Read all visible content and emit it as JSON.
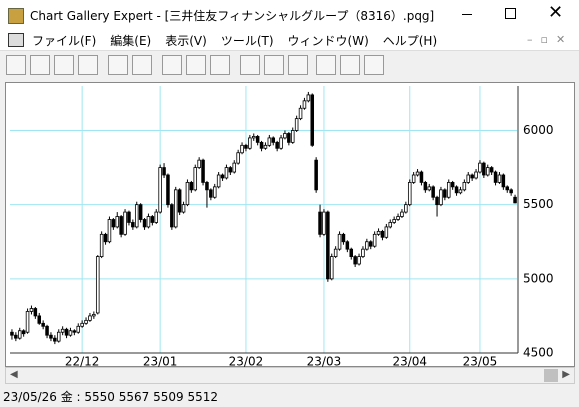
{
  "window": {
    "title": "Chart Gallery Expert - [三井住友フィナンシャルグループ（8316）.pqg]"
  },
  "menu": [
    "ファイル(F)",
    "編集(E)",
    "表示(V)",
    "ツール(T)",
    "ウィンドウ(W)",
    "ヘルプ(H)"
  ],
  "status_bar": {
    "text": "23/05/26 金 : 5550 5567 5509 5512"
  },
  "chart_data": {
    "type": "candlestick",
    "up_color": "#ffffff",
    "down_color": "#000000",
    "grid_color": "#9fe6f2",
    "xlim": [
      -0.5,
      129.5
    ],
    "xticks": [
      {
        "value": 18,
        "label": "22/12"
      },
      {
        "value": 38,
        "label": "23/01"
      },
      {
        "value": 60,
        "label": "23/02"
      },
      {
        "value": 80,
        "label": "23/03"
      },
      {
        "value": 102,
        "label": "23/04"
      },
      {
        "value": 120,
        "label": "23/05"
      }
    ],
    "ylim": [
      4500,
      6300
    ],
    "yticks": [
      4500,
      5000,
      5500,
      6000
    ],
    "grid": true,
    "ohlc": [
      [
        4640,
        4660,
        4590,
        4620
      ],
      [
        4620,
        4640,
        4580,
        4600
      ],
      [
        4600,
        4670,
        4590,
        4650
      ],
      [
        4650,
        4660,
        4610,
        4630
      ],
      [
        4640,
        4800,
        4630,
        4780
      ],
      [
        4780,
        4820,
        4760,
        4800
      ],
      [
        4800,
        4810,
        4730,
        4750
      ],
      [
        4750,
        4770,
        4690,
        4700
      ],
      [
        4700,
        4720,
        4660,
        4680
      ],
      [
        4680,
        4690,
        4600,
        4620
      ],
      [
        4620,
        4640,
        4580,
        4600
      ],
      [
        4600,
        4620,
        4560,
        4580
      ],
      [
        4580,
        4660,
        4570,
        4640
      ],
      [
        4640,
        4680,
        4620,
        4660
      ],
      [
        4660,
        4670,
        4600,
        4620
      ],
      [
        4620,
        4670,
        4610,
        4650
      ],
      [
        4650,
        4660,
        4620,
        4640
      ],
      [
        4640,
        4700,
        4630,
        4680
      ],
      [
        4680,
        4720,
        4670,
        4700
      ],
      [
        4700,
        4740,
        4690,
        4720
      ],
      [
        4720,
        4770,
        4710,
        4750
      ],
      [
        4750,
        4780,
        4730,
        4760
      ],
      [
        4770,
        5160,
        4760,
        5150
      ],
      [
        5150,
        5320,
        5140,
        5300
      ],
      [
        5300,
        5310,
        5230,
        5250
      ],
      [
        5250,
        5420,
        5240,
        5400
      ],
      [
        5400,
        5410,
        5330,
        5350
      ],
      [
        5350,
        5450,
        5340,
        5420
      ],
      [
        5420,
        5430,
        5280,
        5300
      ],
      [
        5300,
        5470,
        5290,
        5450
      ],
      [
        5450,
        5460,
        5360,
        5380
      ],
      [
        5380,
        5400,
        5330,
        5350
      ],
      [
        5350,
        5520,
        5340,
        5500
      ],
      [
        5500,
        5510,
        5380,
        5400
      ],
      [
        5400,
        5410,
        5330,
        5350
      ],
      [
        5350,
        5440,
        5340,
        5420
      ],
      [
        5420,
        5430,
        5360,
        5380
      ],
      [
        5380,
        5470,
        5370,
        5450
      ],
      [
        5450,
        5770,
        5440,
        5750
      ],
      [
        5750,
        5780,
        5680,
        5700
      ],
      [
        5700,
        5710,
        5480,
        5500
      ],
      [
        5500,
        5510,
        5330,
        5350
      ],
      [
        5350,
        5620,
        5340,
        5600
      ],
      [
        5600,
        5610,
        5430,
        5450
      ],
      [
        5450,
        5520,
        5440,
        5500
      ],
      [
        5500,
        5670,
        5490,
        5650
      ],
      [
        5650,
        5660,
        5580,
        5600
      ],
      [
        5600,
        5770,
        5590,
        5750
      ],
      [
        5750,
        5820,
        5740,
        5800
      ],
      [
        5800,
        5810,
        5630,
        5650
      ],
      [
        5650,
        5660,
        5480,
        5600
      ],
      [
        5600,
        5610,
        5530,
        5550
      ],
      [
        5550,
        5640,
        5540,
        5620
      ],
      [
        5620,
        5720,
        5610,
        5700
      ],
      [
        5700,
        5710,
        5660,
        5680
      ],
      [
        5680,
        5770,
        5670,
        5750
      ],
      [
        5750,
        5760,
        5700,
        5720
      ],
      [
        5720,
        5800,
        5710,
        5780
      ],
      [
        5780,
        5870,
        5770,
        5850
      ],
      [
        5850,
        5920,
        5840,
        5900
      ],
      [
        5900,
        5910,
        5860,
        5880
      ],
      [
        5880,
        5970,
        5870,
        5950
      ],
      [
        5950,
        5980,
        5930,
        5960
      ],
      [
        5960,
        5970,
        5900,
        5920
      ],
      [
        5920,
        5930,
        5860,
        5880
      ],
      [
        5880,
        5920,
        5870,
        5900
      ],
      [
        5900,
        5970,
        5890,
        5950
      ],
      [
        5950,
        5960,
        5900,
        5920
      ],
      [
        5920,
        5930,
        5860,
        5880
      ],
      [
        5880,
        5970,
        5870,
        5950
      ],
      [
        5950,
        6000,
        5940,
        5980
      ],
      [
        5980,
        5990,
        5900,
        5920
      ],
      [
        5920,
        6020,
        5910,
        6000
      ],
      [
        6000,
        6100,
        5990,
        6080
      ],
      [
        6080,
        6170,
        6070,
        6150
      ],
      [
        6150,
        6220,
        6140,
        6200
      ],
      [
        6200,
        6260,
        6190,
        6240
      ],
      [
        6240,
        6250,
        5890,
        5900
      ],
      [
        5800,
        5820,
        5580,
        5600
      ],
      [
        5450,
        5500,
        5280,
        5300
      ],
      [
        5300,
        5470,
        5290,
        5450
      ],
      [
        5450,
        5460,
        4980,
        5000
      ],
      [
        5000,
        5170,
        4990,
        5150
      ],
      [
        5150,
        5220,
        5140,
        5200
      ],
      [
        5200,
        5320,
        5190,
        5300
      ],
      [
        5300,
        5310,
        5230,
        5250
      ],
      [
        5250,
        5260,
        5180,
        5200
      ],
      [
        5200,
        5210,
        5130,
        5150
      ],
      [
        5150,
        5160,
        5080,
        5100
      ],
      [
        5100,
        5170,
        5090,
        5150
      ],
      [
        5150,
        5220,
        5140,
        5200
      ],
      [
        5200,
        5270,
        5190,
        5250
      ],
      [
        5250,
        5260,
        5200,
        5220
      ],
      [
        5220,
        5320,
        5210,
        5300
      ],
      [
        5300,
        5340,
        5290,
        5320
      ],
      [
        5320,
        5330,
        5260,
        5280
      ],
      [
        5280,
        5370,
        5270,
        5350
      ],
      [
        5350,
        5400,
        5340,
        5380
      ],
      [
        5380,
        5420,
        5370,
        5400
      ],
      [
        5400,
        5440,
        5390,
        5420
      ],
      [
        5420,
        5470,
        5410,
        5450
      ],
      [
        5450,
        5520,
        5440,
        5500
      ],
      [
        5500,
        5670,
        5490,
        5650
      ],
      [
        5650,
        5720,
        5640,
        5700
      ],
      [
        5700,
        5740,
        5690,
        5720
      ],
      [
        5720,
        5730,
        5630,
        5650
      ],
      [
        5650,
        5660,
        5580,
        5600
      ],
      [
        5600,
        5640,
        5590,
        5620
      ],
      [
        5620,
        5630,
        5530,
        5550
      ],
      [
        5550,
        5560,
        5420,
        5500
      ],
      [
        5500,
        5620,
        5490,
        5600
      ],
      [
        5600,
        5610,
        5530,
        5550
      ],
      [
        5550,
        5670,
        5540,
        5650
      ],
      [
        5650,
        5660,
        5600,
        5620
      ],
      [
        5620,
        5630,
        5560,
        5580
      ],
      [
        5580,
        5620,
        5570,
        5600
      ],
      [
        5600,
        5670,
        5590,
        5650
      ],
      [
        5650,
        5720,
        5640,
        5700
      ],
      [
        5700,
        5710,
        5660,
        5680
      ],
      [
        5680,
        5740,
        5670,
        5720
      ],
      [
        5720,
        5800,
        5710,
        5780
      ],
      [
        5780,
        5790,
        5680,
        5700
      ],
      [
        5700,
        5770,
        5690,
        5750
      ],
      [
        5750,
        5760,
        5700,
        5720
      ],
      [
        5720,
        5730,
        5630,
        5650
      ],
      [
        5650,
        5720,
        5640,
        5700
      ],
      [
        5700,
        5710,
        5600,
        5620
      ],
      [
        5620,
        5630,
        5580,
        5600
      ],
      [
        5600,
        5610,
        5560,
        5580
      ],
      [
        5550,
        5567,
        5509,
        5512
      ]
    ]
  }
}
